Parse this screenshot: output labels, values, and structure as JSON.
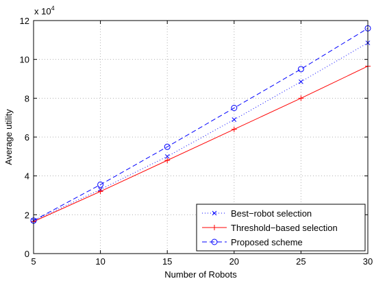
{
  "chart_data": {
    "type": "line",
    "xlabel": "Number of Robots",
    "ylabel": "Average utility",
    "y_multiplier_label": {
      "base": "x 10",
      "exponent": "4"
    },
    "xlim": [
      5,
      30
    ],
    "ylim": [
      0,
      12
    ],
    "x_ticks": [
      5,
      10,
      15,
      20,
      25,
      30
    ],
    "y_ticks": [
      0,
      2,
      4,
      6,
      8,
      10,
      12
    ],
    "grid": true,
    "legend_position": "bottom-right",
    "x": [
      5,
      10,
      15,
      20,
      25,
      30
    ],
    "series": [
      {
        "name": "Best−robot selection",
        "values": [
          1.7,
          3.3,
          5.0,
          6.9,
          8.85,
          10.85
        ],
        "color": "#0000ff",
        "line": "dotted",
        "marker": "x"
      },
      {
        "name": "Threshold−based selection",
        "values": [
          1.65,
          3.2,
          4.8,
          6.4,
          8.0,
          9.65
        ],
        "color": "#ff0000",
        "line": "solid",
        "marker": "+"
      },
      {
        "name": "Proposed scheme",
        "values": [
          1.7,
          3.55,
          5.5,
          7.5,
          9.5,
          11.6
        ],
        "color": "#0000ff",
        "line": "dashed",
        "marker": "o"
      }
    ]
  }
}
